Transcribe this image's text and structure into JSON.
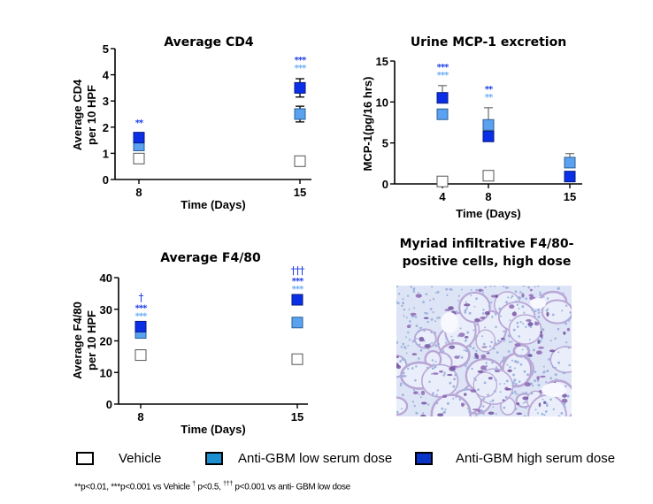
{
  "colors": {
    "vehicle": "#ffffff",
    "low_dose": "#5aa2ef",
    "high_dose": "#0a2fe6",
    "low_sig": "#6aaef5",
    "high_sig": "#2040e8",
    "legend_low": "#1c8fd0",
    "legend_high": "#0a34c8"
  },
  "chart_data": [
    {
      "id": "cd4",
      "type": "scatter",
      "title": "Average CD4",
      "xlabel": "Time (Days)",
      "ylabel": [
        "Average CD4",
        "per 10 HPF"
      ],
      "ylim": [
        0,
        5
      ],
      "yticks": [
        0,
        1,
        2,
        3,
        4,
        5
      ],
      "x": [
        "8",
        "15"
      ],
      "series": [
        {
          "name": "Vehicle",
          "values": [
            0.8,
            0.7
          ],
          "err": [
            0,
            0
          ]
        },
        {
          "name": "Anti-GBM low serum dose",
          "values": [
            1.3,
            2.5
          ],
          "err": [
            0.15,
            0.3
          ]
        },
        {
          "name": "Anti-GBM high serum dose",
          "values": [
            1.6,
            3.5
          ],
          "err": [
            0.15,
            0.35
          ]
        }
      ],
      "annotations": [
        {
          "x": "8",
          "lines": [
            {
              "text": "**",
              "series": "high"
            }
          ]
        },
        {
          "x": "15",
          "lines": [
            {
              "text": "***",
              "series": "high"
            },
            {
              "text": "***",
              "series": "low"
            }
          ]
        }
      ]
    },
    {
      "id": "mcp1",
      "type": "scatter",
      "title": "Urine MCP-1 excretion",
      "xlabel": "Time (Days)",
      "ylabel": [
        "MCP-1(pg/16 hrs)"
      ],
      "ylim": [
        0,
        15
      ],
      "yticks": [
        0,
        5,
        10,
        15
      ],
      "x": [
        "4",
        "8",
        "15"
      ],
      "series": [
        {
          "name": "Vehicle",
          "values": [
            0.3,
            1.0,
            null
          ],
          "err": [
            0,
            0.5,
            0
          ]
        },
        {
          "name": "Anti-GBM low serum dose",
          "values": [
            8.5,
            7.2,
            2.6
          ],
          "err": [
            0,
            2.1,
            1.1
          ]
        },
        {
          "name": "Anti-GBM high serum dose",
          "values": [
            10.5,
            5.8,
            0.9
          ],
          "err": [
            1.5,
            0,
            0.5
          ]
        }
      ],
      "annotations": [
        {
          "x": "4",
          "lines": [
            {
              "text": "***",
              "series": "high"
            },
            {
              "text": "***",
              "series": "low"
            }
          ]
        },
        {
          "x": "8",
          "lines": [
            {
              "text": "**",
              "series": "high"
            },
            {
              "text": "**",
              "series": "low"
            }
          ]
        }
      ]
    },
    {
      "id": "f480",
      "type": "scatter",
      "title": "Average F4/80",
      "xlabel": "Time (Days)",
      "ylabel": [
        "Average F4/80",
        "per 10 HPF"
      ],
      "ylim": [
        0,
        40
      ],
      "yticks": [
        0,
        10,
        20,
        30,
        40
      ],
      "x": [
        "8",
        "15"
      ],
      "series": [
        {
          "name": "Vehicle",
          "values": [
            15.5,
            14.2
          ],
          "err": [
            0,
            0
          ]
        },
        {
          "name": "Anti-GBM low serum dose",
          "values": [
            22.5,
            25.8
          ],
          "err": [
            0,
            0
          ]
        },
        {
          "name": "Anti-GBM high serum dose",
          "values": [
            24.5,
            33.0
          ],
          "err": [
            0,
            0
          ]
        }
      ],
      "annotations": [
        {
          "x": "8",
          "lines": [
            {
              "text": "†",
              "series": "high"
            },
            {
              "text": "***",
              "series": "high"
            },
            {
              "text": "***",
              "series": "low"
            }
          ]
        },
        {
          "x": "15",
          "lines": [
            {
              "text": "†††",
              "series": "high"
            },
            {
              "text": "***",
              "series": "high"
            },
            {
              "text": "***",
              "series": "low"
            }
          ]
        }
      ]
    }
  ],
  "histology": {
    "title_line1": "Myriad infiltrative F4/80-",
    "title_line2": "positive cells, high dose"
  },
  "legend": [
    {
      "label": "Vehicle",
      "swatch": "vehicle"
    },
    {
      "label": "Anti-GBM low serum dose",
      "swatch": "legend_low"
    },
    {
      "label": "Anti-GBM high serum dose",
      "swatch": "legend_high"
    }
  ],
  "footnote": {
    "part1": "**p<0.01, ***p<0.001 vs Vehicle ",
    "sup1": "†",
    "part2": " p<0.5, ",
    "sup2": "†††",
    "part3": " p<0.001 vs anti- GBM low dose"
  }
}
